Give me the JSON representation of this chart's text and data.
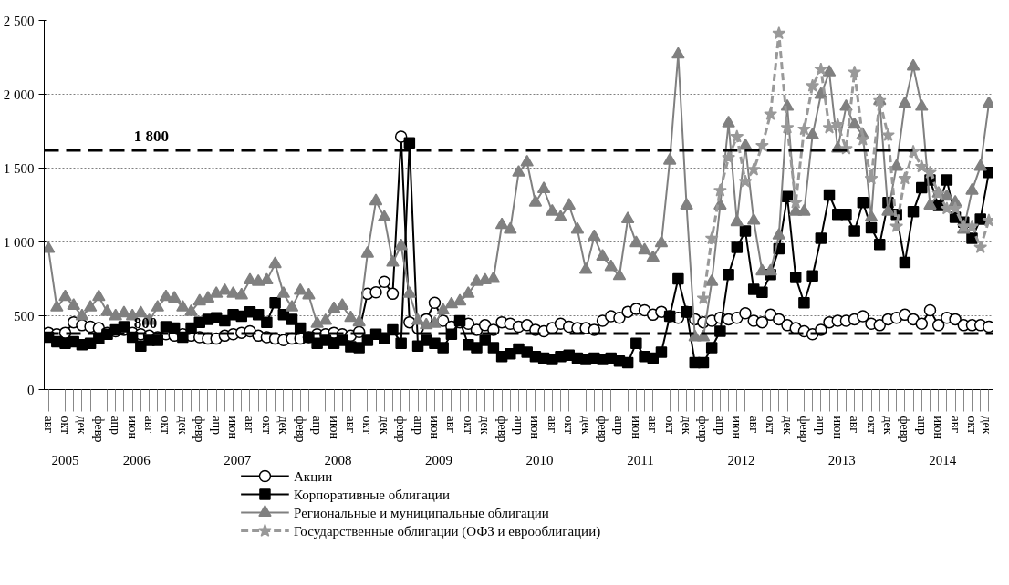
{
  "chart_data": {
    "type": "line",
    "categories": [
      "авг",
      null,
      "окт",
      null,
      "дек",
      null,
      "февр",
      null,
      "апр",
      null,
      "июн",
      null,
      "авг",
      null,
      "окт",
      null,
      "дек",
      null,
      "февр",
      null,
      "апр",
      null,
      "июн",
      null,
      "авг",
      null,
      "окт",
      null,
      "дек",
      null,
      "февр",
      null,
      "апр",
      null,
      "июн",
      null,
      "авг",
      null,
      "окт",
      null,
      "дек",
      null,
      "февр",
      null,
      "апр",
      null,
      "июн",
      null,
      "авг",
      null,
      "окт",
      null,
      "дек",
      null,
      "февр",
      null,
      "апр",
      null,
      "июн",
      null,
      "авг",
      null,
      "окт",
      null,
      "дек",
      null,
      "февр",
      null,
      "апр",
      null,
      "июн",
      null,
      "авг",
      null,
      "окт",
      null,
      "дек",
      null,
      "февр",
      null,
      "апр",
      null,
      "июн",
      null,
      "авг",
      null,
      "окт",
      null,
      "дек",
      null,
      "февр",
      null,
      "апр",
      null,
      "июн",
      null,
      "авг",
      null,
      "окт",
      null,
      "дек",
      null,
      "февр",
      null,
      "апр",
      null,
      "июн",
      null,
      "авг",
      null,
      "окт",
      null,
      "дек"
    ],
    "series": [
      {
        "name": "Акции",
        "color": "#000000",
        "marker": "circle",
        "line_style": "solid",
        "values": [
          385,
          375,
          385,
          456,
          436,
          426,
          416,
          385,
          395,
          405,
          385,
          375,
          365,
          355,
          375,
          365,
          375,
          365,
          355,
          345,
          345,
          365,
          375,
          385,
          395,
          365,
          355,
          345,
          335,
          345,
          345,
          355,
          375,
          375,
          385,
          375,
          365,
          390,
          649,
          659,
          730,
          649,
          1713,
          456,
          416,
          476,
          588,
          466,
          426,
          456,
          446,
          405,
          436,
          405,
          456,
          446,
          426,
          436,
          405,
          395,
          416,
          446,
          426,
          416,
          416,
          405,
          466,
          497,
          486,
          527,
          547,
          537,
          507,
          527,
          497,
          486,
          527,
          476,
          456,
          466,
          486,
          476,
          486,
          517,
          466,
          456,
          507,
          476,
          436,
          416,
          395,
          375,
          405,
          456,
          466,
          466,
          476,
          497,
          446,
          436,
          476,
          486,
          507,
          476,
          446,
          537,
          436,
          486,
          476,
          436,
          436,
          436,
          426
        ]
      },
      {
        "name": "Корпоративные облигации",
        "color": "#000000",
        "marker": "square",
        "line_style": "solid",
        "values": [
          355,
          324,
          314,
          324,
          304,
          314,
          345,
          375,
          405,
          426,
          355,
          294,
          334,
          334,
          426,
          416,
          355,
          416,
          456,
          476,
          486,
          466,
          507,
          497,
          527,
          507,
          456,
          588,
          507,
          476,
          416,
          355,
          314,
          334,
          314,
          334,
          290,
          284,
          334,
          375,
          345,
          405,
          314,
          1672,
          294,
          334,
          314,
          284,
          375,
          466,
          304,
          284,
          334,
          284,
          223,
          243,
          274,
          253,
          223,
          213,
          203,
          223,
          233,
          213,
          203,
          213,
          203,
          213,
          193,
          182,
          314,
          223,
          213,
          253,
          497,
          750,
          527,
          182,
          182,
          284,
          395,
          780,
          963,
          1074,
          679,
          659,
          780,
          953,
          1307,
          760,
          588,
          770,
          1024,
          1318,
          1186,
          1186,
          1074,
          1267,
          1095,
          983,
          1267,
          1186,
          861,
          1206,
          1368,
          1419,
          1247,
          1419,
          1166,
          1135,
          1024,
          1155,
          1470
        ]
      },
      {
        "name": "Региональные и муниципальные облигации",
        "color": "#808080",
        "marker": "triangle",
        "line_style": "solid",
        "values": [
          953,
          557,
          628,
          568,
          497,
          557,
          628,
          527,
          497,
          517,
          497,
          517,
          466,
          557,
          628,
          618,
          557,
          527,
          598,
          618,
          649,
          669,
          649,
          639,
          740,
          730,
          740,
          851,
          649,
          557,
          669,
          639,
          446,
          466,
          547,
          568,
          486,
          456,
          922,
          1277,
          1166,
          861,
          973,
          649,
          466,
          436,
          446,
          537,
          578,
          598,
          649,
          730,
          740,
          750,
          1115,
          1084,
          1470,
          1540,
          1267,
          1358,
          1206,
          1166,
          1247,
          1084,
          811,
          1034,
          902,
          831,
          770,
          1155,
          993,
          943,
          892,
          993,
          1551,
          2270,
          1247,
          355,
          355,
          730,
          1247,
          1804,
          1135,
          1652,
          1145,
          801,
          801,
          1044,
          1916,
          1206,
          1206,
          1723,
          1997,
          2149,
          1632,
          1916,
          1794,
          1723,
          1166,
          1956,
          1206,
          1510,
          1936,
          2189,
          1916,
          1247,
          1328,
          1307,
          1267,
          1084,
          1348,
          1510,
          1936
        ]
      },
      {
        "name": "Государственные облигации (ОФЗ и еврооблигации)",
        "color": "#999999",
        "marker": "star",
        "line_style": "dashed",
        "values": [
          null,
          null,
          null,
          null,
          null,
          null,
          null,
          null,
          null,
          null,
          null,
          null,
          null,
          null,
          null,
          null,
          null,
          null,
          null,
          null,
          null,
          null,
          null,
          null,
          null,
          null,
          null,
          null,
          null,
          null,
          null,
          null,
          null,
          null,
          null,
          null,
          null,
          null,
          null,
          null,
          null,
          null,
          null,
          null,
          null,
          null,
          null,
          null,
          null,
          null,
          null,
          null,
          null,
          null,
          null,
          null,
          null,
          null,
          null,
          null,
          null,
          null,
          null,
          null,
          null,
          null,
          null,
          null,
          null,
          null,
          null,
          null,
          null,
          null,
          null,
          null,
          null,
          null,
          618,
          1024,
          1348,
          1571,
          1713,
          1409,
          1490,
          1652,
          1865,
          2412,
          1774,
          1267,
          1763,
          2057,
          2169,
          1774,
          1794,
          1632,
          2149,
          1693,
          1429,
          1956,
          1723,
          1105,
          1429,
          1611,
          1510,
          1470,
          1328,
          1226,
          1226,
          1105,
          1105,
          963,
          1145
        ]
      }
    ],
    "ylim": [
      0,
      2500
    ],
    "yticks": [
      0,
      {
        "value": 500,
        "label": "500"
      },
      {
        "value": 1000,
        "label": "1 000"
      },
      {
        "value": 1500,
        "label": "1 500"
      },
      {
        "value": 2000,
        "label": "2 000"
      },
      {
        "value": 2500,
        "label": "2 500"
      }
    ],
    "ref_lines": [
      {
        "axis": "y",
        "value": 1620,
        "color": "#000000",
        "line_style": "dashed"
      },
      {
        "axis": "y",
        "value": 380,
        "color": "#000000",
        "line_style": "dashed"
      }
    ],
    "annotations": [
      "2005",
      "2006",
      "2007",
      "2008",
      "2009",
      "2010",
      "2011",
      "2012",
      "2013",
      "2014",
      {
        "text": "1 800",
        "y": 1620
      },
      {
        "text": "800",
        "y": 380
      }
    ],
    "grid": "y",
    "legend": "bottom"
  }
}
